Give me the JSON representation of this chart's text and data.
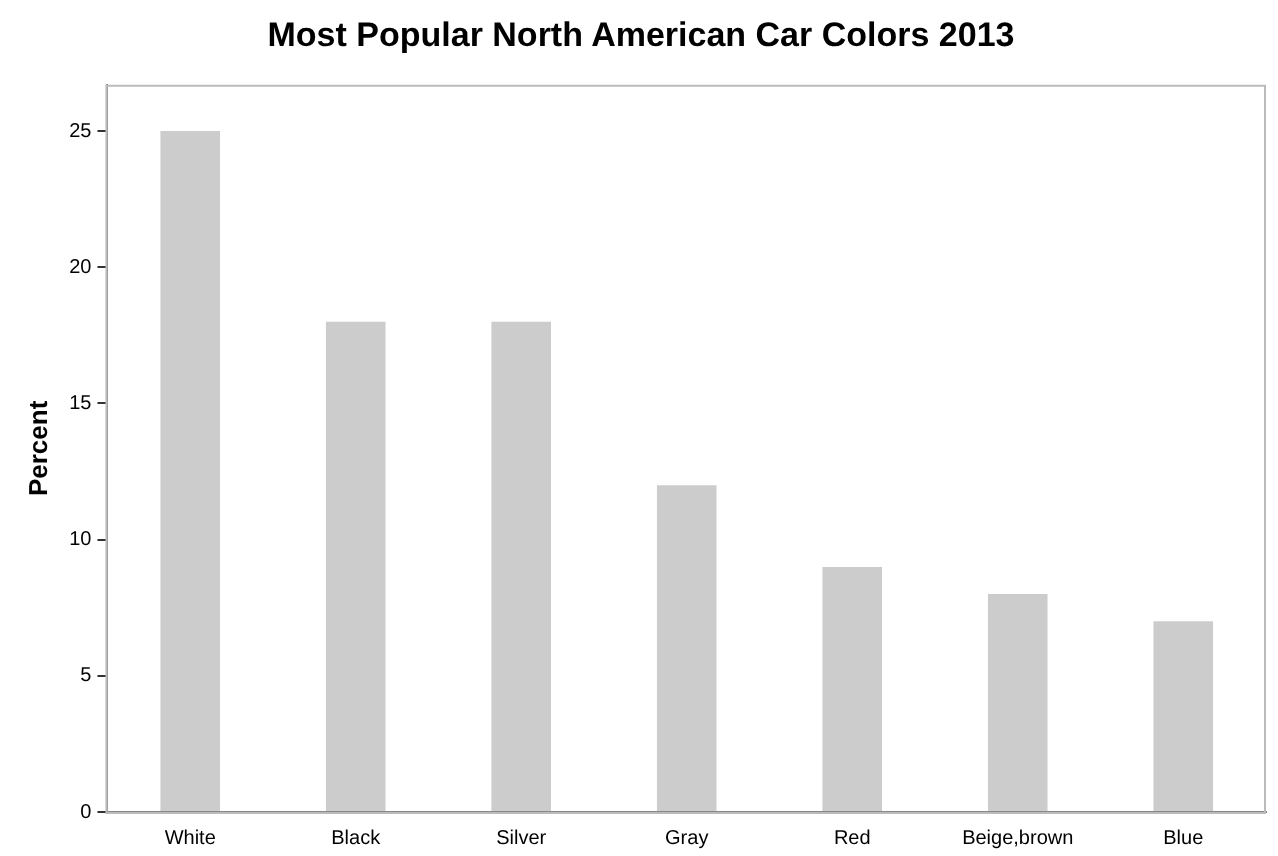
{
  "chart_data": {
    "type": "bar",
    "title": "Most Popular North American Car Colors 2013",
    "ylabel": "Percent",
    "categories": [
      "White",
      "Black",
      "Silver",
      "Gray",
      "Red",
      "Beige,brown",
      "Blue"
    ],
    "values": [
      25,
      18,
      18,
      12,
      9,
      8,
      7
    ],
    "color": "#cccccc",
    "ylim": [
      0,
      26.7
    ],
    "yticks": [
      0,
      5,
      10,
      15,
      20,
      25
    ],
    "grid": false,
    "legend": false
  }
}
